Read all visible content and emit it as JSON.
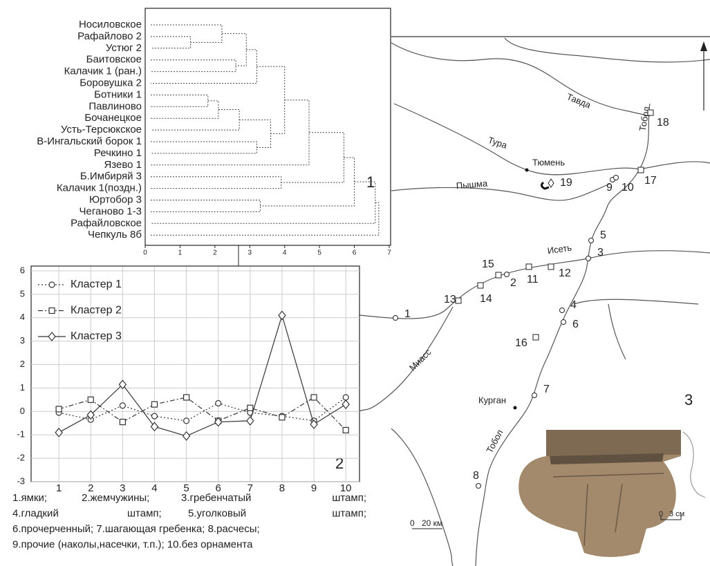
{
  "chart_data": [
    {
      "type": "dendrogram",
      "leaves": [
        "Носиловское",
        "Рафайлово 2",
        "Устюг 2",
        "Баитовское",
        "Калачик 1 (ран.)",
        "Боровушка 2",
        "Ботники 1",
        "Павлиново",
        "Бочанецкое",
        "Усть-Терсюкское",
        "В-Ингальский борок 1",
        "Речкино 1",
        "Язево 1",
        "Б.Имбиряй 3",
        "Калачик 1(поздн.)",
        "Юртобор 3",
        "Чеганово 1-3",
        "Рафайловское",
        "Чепкуль 8б"
      ],
      "merges": [
        {
          "left": 1,
          "right": 2,
          "height": 1.3
        },
        {
          "left": 0,
          "right": 19,
          "height": 2.2
        },
        {
          "left": 3,
          "right": 4,
          "height": 2.6
        },
        {
          "left": 20,
          "right": 21,
          "height": 2.9
        },
        {
          "left": 22,
          "right": 5,
          "height": 3.2
        },
        {
          "left": 6,
          "right": 7,
          "height": 1.8
        },
        {
          "left": 24,
          "right": 8,
          "height": 2.1
        },
        {
          "left": 25,
          "right": 9,
          "height": 2.7
        },
        {
          "left": 10,
          "right": 11,
          "height": 3.2
        },
        {
          "left": 26,
          "right": 27,
          "height": 3.6
        },
        {
          "left": 23,
          "right": 28,
          "height": 4.0
        },
        {
          "left": 13,
          "right": 14,
          "height": 3.9
        },
        {
          "left": 29,
          "right": 12,
          "height": 4.7
        },
        {
          "left": 31,
          "right": 30,
          "height": 5.7
        },
        {
          "left": 15,
          "right": 16,
          "height": 3.3
        },
        {
          "left": 32,
          "right": 33,
          "height": 6.0
        },
        {
          "left": 34,
          "right": 17,
          "height": 6.6
        },
        {
          "left": 35,
          "right": 18,
          "height": 6.7
        }
      ],
      "xlim": [
        0,
        7
      ],
      "xticks": [
        0,
        1,
        2,
        3,
        4,
        5,
        6,
        7
      ],
      "panel_label": "1"
    },
    {
      "type": "line",
      "x": [
        1,
        2,
        3,
        4,
        5,
        6,
        7,
        8,
        9,
        10
      ],
      "series": [
        {
          "name": "Кластер 1",
          "color": "#333333",
          "marker": "circle",
          "dash": "dotted",
          "values": [
            -0.05,
            -0.35,
            0.25,
            -0.2,
            -0.4,
            0.35,
            -0.05,
            -0.2,
            -0.4,
            0.6
          ]
        },
        {
          "name": "Кластер 2",
          "color": "#333333",
          "marker": "square",
          "dash": "dashdot",
          "values": [
            0.1,
            0.5,
            -0.45,
            0.3,
            0.6,
            -0.4,
            0.15,
            -0.25,
            0.6,
            -0.8
          ]
        },
        {
          "name": "Кластер 3",
          "color": "#333333",
          "marker": "diamond",
          "dash": "solid",
          "values": [
            -0.9,
            -0.15,
            1.15,
            -0.65,
            -1.05,
            -0.45,
            -0.4,
            4.1,
            -0.55,
            0.3
          ]
        }
      ],
      "xlim": [
        0.13,
        10.43
      ],
      "ylim": [
        -3,
        6
      ],
      "xticks": [
        1,
        2,
        3,
        4,
        5,
        6,
        7,
        8,
        9,
        10
      ],
      "yticks": [
        -3,
        -2,
        -1,
        0,
        1,
        2,
        3,
        4,
        5,
        6
      ],
      "grid": true,
      "legend": "upper left",
      "panel_label": "2"
    }
  ],
  "caption": [
    [
      "1.ямки;",
      "2.жемчужины;",
      "3.гребенчатый",
      "штамп;"
    ],
    [
      "4.гладкий",
      "штамп;",
      "5.уголковый",
      "штамп;"
    ],
    [
      "6.прочерченный; 7.шагающая гребенка; 8.расчесы;"
    ],
    [
      "9.прочие (наколы,насечки, т.п.); 10.без орнамента"
    ]
  ],
  "map": {
    "labels": {
      "tavda": "Тавда",
      "tobol_north": "Тобол",
      "tura": "Тура",
      "tyumen": "Тюмень",
      "pyshma": "Пышма",
      "iset": "Исеть",
      "miass": "Миасс",
      "kurgan": "Курган",
      "tobol_south": "Тобол"
    },
    "sites": [
      "1",
      "2",
      "3",
      "4",
      "5",
      "6",
      "7",
      "8",
      "9",
      "10",
      "11",
      "12",
      "13",
      "14",
      "15",
      "16",
      "17",
      "18",
      "19"
    ],
    "scale_map": [
      "0",
      "20 км"
    ],
    "scale_photo": [
      "0",
      "3 см"
    ],
    "panel_label": "3"
  }
}
